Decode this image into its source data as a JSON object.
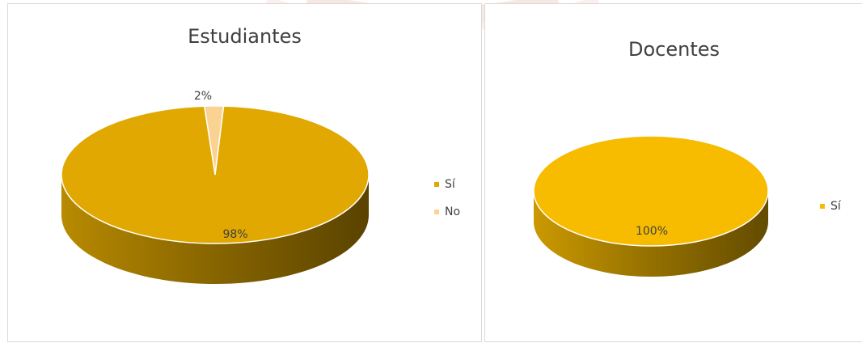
{
  "chart_data": [
    {
      "type": "pie",
      "title": "Estudiantes",
      "categories": [
        "Sí",
        "No"
      ],
      "values": [
        98,
        2
      ],
      "data_labels": [
        "98%",
        "2%"
      ],
      "colors": [
        "#e0a800",
        "#fad392"
      ],
      "style": "3d",
      "legend": "right"
    },
    {
      "type": "pie",
      "title": "Docentes",
      "categories": [
        "Sí"
      ],
      "values": [
        100
      ],
      "data_labels": [
        "100%"
      ],
      "colors": [
        "#f7bb00"
      ],
      "style": "3d",
      "legend": "right"
    }
  ]
}
